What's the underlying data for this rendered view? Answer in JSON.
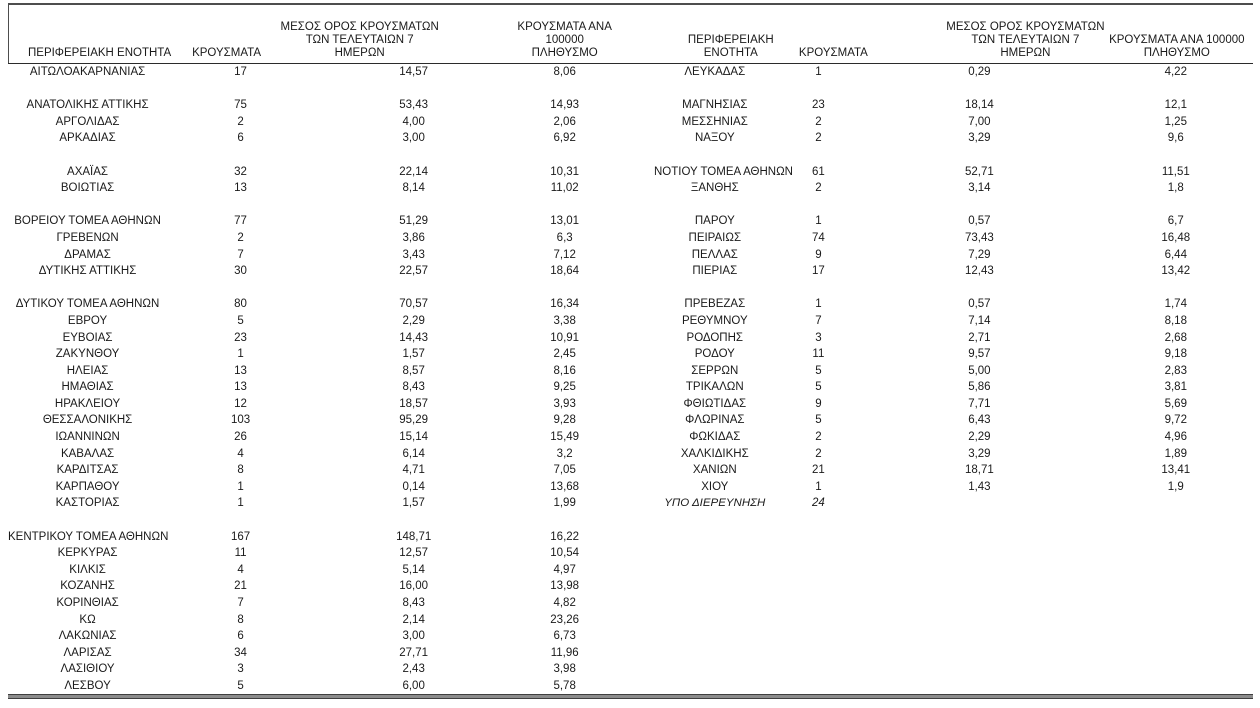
{
  "columns": {
    "region": "ΠΕΡΙΦΕΡΕΙΑΚΗ ΕΝΟΤΗΤΑ",
    "cases": "ΚΡΟΥΣΜΑΤΑ",
    "avg7": "ΜΕΣΟΣ ΟΡΟΣ ΚΡΟΥΣΜΑΤΩΝ\nΤΩΝ ΤΕΛΕΥΤΑΙΩΝ 7\nΗΜΕΡΩΝ",
    "per100k": "ΚΡΟΥΣΜΑΤΑ ΑΝΑ 100000\nΠΛΗΘΥΣΜΟ"
  },
  "colors": {
    "text": "#1a1a1a",
    "rule_dark": "#4d4d4d",
    "rule_bottom_fill": "#8c8c8c",
    "background": "#ffffff"
  },
  "tables": {
    "left": {
      "rows": [
        {
          "region": "ΑΙΤΩΛΟΑΚΑΡΝΑΝΙΑΣ",
          "cases": "17",
          "avg7": "14,57",
          "per100k": "8,06"
        },
        {},
        {
          "region": "ΑΝΑΤΟΛΙΚΗΣ ΑΤΤΙΚΗΣ",
          "cases": "75",
          "avg7": "53,43",
          "per100k": "14,93"
        },
        {
          "region": "ΑΡΓΟΛΙΔΑΣ",
          "cases": "2",
          "avg7": "4,00",
          "per100k": "2,06"
        },
        {
          "region": "ΑΡΚΑΔΙΑΣ",
          "cases": "6",
          "avg7": "3,00",
          "per100k": "6,92"
        },
        {},
        {
          "region": "ΑΧΑΪΑΣ",
          "cases": "32",
          "avg7": "22,14",
          "per100k": "10,31"
        },
        {
          "region": "ΒΟΙΩΤΙΑΣ",
          "cases": "13",
          "avg7": "8,14",
          "per100k": "11,02"
        },
        {},
        {
          "region": "ΒΟΡΕΙΟΥ ΤΟΜΕΑ ΑΘΗΝΩΝ",
          "cases": "77",
          "avg7": "51,29",
          "per100k": "13,01"
        },
        {
          "region": "ΓΡΕΒΕΝΩΝ",
          "cases": "2",
          "avg7": "3,86",
          "per100k": "6,3"
        },
        {
          "region": "ΔΡΑΜΑΣ",
          "cases": "7",
          "avg7": "3,43",
          "per100k": "7,12"
        },
        {
          "region": "ΔΥΤΙΚΗΣ ΑΤΤΙΚΗΣ",
          "cases": "30",
          "avg7": "22,57",
          "per100k": "18,64"
        },
        {},
        {
          "region": "ΔΥΤΙΚΟΥ ΤΟΜΕΑ ΑΘΗΝΩΝ",
          "cases": "80",
          "avg7": "70,57",
          "per100k": "16,34"
        },
        {
          "region": "ΕΒΡΟΥ",
          "cases": "5",
          "avg7": "2,29",
          "per100k": "3,38"
        },
        {
          "region": "ΕΥΒΟΙΑΣ",
          "cases": "23",
          "avg7": "14,43",
          "per100k": "10,91"
        },
        {
          "region": "ΖΑΚΥΝΘΟΥ",
          "cases": "1",
          "avg7": "1,57",
          "per100k": "2,45"
        },
        {
          "region": "ΗΛΕΙΑΣ",
          "cases": "13",
          "avg7": "8,57",
          "per100k": "8,16"
        },
        {
          "region": "ΗΜΑΘΙΑΣ",
          "cases": "13",
          "avg7": "8,43",
          "per100k": "9,25"
        },
        {
          "region": "ΗΡΑΚΛΕΙΟΥ",
          "cases": "12",
          "avg7": "18,57",
          "per100k": "3,93"
        },
        {
          "region": "ΘΕΣΣΑΛΟΝΙΚΗΣ",
          "cases": "103",
          "avg7": "95,29",
          "per100k": "9,28"
        },
        {
          "region": "ΙΩΑΝΝΙΝΩΝ",
          "cases": "26",
          "avg7": "15,14",
          "per100k": "15,49"
        },
        {
          "region": "ΚΑΒΑΛΑΣ",
          "cases": "4",
          "avg7": "6,14",
          "per100k": "3,2"
        },
        {
          "region": "ΚΑΡΔΙΤΣΑΣ",
          "cases": "8",
          "avg7": "4,71",
          "per100k": "7,05"
        },
        {
          "region": "ΚΑΡΠΑΘΟΥ",
          "cases": "1",
          "avg7": "0,14",
          "per100k": "13,68"
        },
        {
          "region": "ΚΑΣΤΟΡΙΑΣ",
          "cases": "1",
          "avg7": "1,57",
          "per100k": "1,99"
        },
        {},
        {
          "region": "ΚΕΝΤΡΙΚΟΥ ΤΟΜΕΑ ΑΘΗΝΩΝ",
          "cases": "167",
          "avg7": "148,71",
          "per100k": "16,22"
        },
        {
          "region": "ΚΕΡΚΥΡΑΣ",
          "cases": "11",
          "avg7": "12,57",
          "per100k": "10,54"
        },
        {
          "region": "ΚΙΛΚΙΣ",
          "cases": "4",
          "avg7": "5,14",
          "per100k": "4,97"
        },
        {
          "region": "ΚΟΖΑΝΗΣ",
          "cases": "21",
          "avg7": "16,00",
          "per100k": "13,98"
        },
        {
          "region": "ΚΟΡΙΝΘΙΑΣ",
          "cases": "7",
          "avg7": "8,43",
          "per100k": "4,82"
        },
        {
          "region": "ΚΩ",
          "cases": "8",
          "avg7": "2,14",
          "per100k": "23,26"
        },
        {
          "region": "ΛΑΚΩΝΙΑΣ",
          "cases": "6",
          "avg7": "3,00",
          "per100k": "6,73"
        },
        {
          "region": "ΛΑΡΙΣΑΣ",
          "cases": "34",
          "avg7": "27,71",
          "per100k": "11,96"
        },
        {
          "region": "ΛΑΣΙΘΙΟΥ",
          "cases": "3",
          "avg7": "2,43",
          "per100k": "3,98"
        },
        {
          "region": "ΛΕΣΒΟΥ",
          "cases": "5",
          "avg7": "6,00",
          "per100k": "5,78"
        }
      ]
    },
    "right": {
      "rows": [
        {
          "region": "ΛΕΥΚΑΔΑΣ",
          "cases": "1",
          "avg7": "0,29",
          "per100k": "4,22"
        },
        {},
        {
          "region": "ΜΑΓΝΗΣΙΑΣ",
          "cases": "23",
          "avg7": "18,14",
          "per100k": "12,1"
        },
        {
          "region": "ΜΕΣΣΗΝΙΑΣ",
          "cases": "2",
          "avg7": "7,00",
          "per100k": "1,25"
        },
        {
          "region": "ΝΑΞΟΥ",
          "cases": "2",
          "avg7": "3,29",
          "per100k": "9,6"
        },
        {},
        {
          "region": "ΝΟΤΙΟΥ ΤΟΜΕΑ ΑΘΗΝΩΝ",
          "cases": "61",
          "avg7": "52,71",
          "per100k": "11,51"
        },
        {
          "region": "ΞΑΝΘΗΣ",
          "cases": "2",
          "avg7": "3,14",
          "per100k": "1,8"
        },
        {},
        {
          "region": "ΠΑΡΟΥ",
          "cases": "1",
          "avg7": "0,57",
          "per100k": "6,7"
        },
        {
          "region": "ΠΕΙΡΑΙΩΣ",
          "cases": "74",
          "avg7": "73,43",
          "per100k": "16,48"
        },
        {
          "region": "ΠΕΛΛΑΣ",
          "cases": "9",
          "avg7": "7,29",
          "per100k": "6,44"
        },
        {
          "region": "ΠΙΕΡΙΑΣ",
          "cases": "17",
          "avg7": "12,43",
          "per100k": "13,42"
        },
        {},
        {
          "region": "ΠΡΕΒΕΖΑΣ",
          "cases": "1",
          "avg7": "0,57",
          "per100k": "1,74"
        },
        {
          "region": "ΡΕΘΥΜΝΟΥ",
          "cases": "7",
          "avg7": "7,14",
          "per100k": "8,18"
        },
        {
          "region": "ΡΟΔΟΠΗΣ",
          "cases": "3",
          "avg7": "2,71",
          "per100k": "2,68"
        },
        {
          "region": "ΡΟΔΟΥ",
          "cases": "11",
          "avg7": "9,57",
          "per100k": "9,18"
        },
        {
          "region": "ΣΕΡΡΩΝ",
          "cases": "5",
          "avg7": "5,00",
          "per100k": "2,83"
        },
        {
          "region": "ΤΡΙΚΑΛΩΝ",
          "cases": "5",
          "avg7": "5,86",
          "per100k": "3,81"
        },
        {
          "region": "ΦΘΙΩΤΙΔΑΣ",
          "cases": "9",
          "avg7": "7,71",
          "per100k": "5,69"
        },
        {
          "region": "ΦΛΩΡΙΝΑΣ",
          "cases": "5",
          "avg7": "6,43",
          "per100k": "9,72"
        },
        {
          "region": "ΦΩΚΙΔΑΣ",
          "cases": "2",
          "avg7": "2,29",
          "per100k": "4,96"
        },
        {
          "region": "ΧΑΛΚΙΔΙΚΗΣ",
          "cases": "2",
          "avg7": "3,29",
          "per100k": "1,89"
        },
        {
          "region": "ΧΑΝΙΩΝ",
          "cases": "21",
          "avg7": "18,71",
          "per100k": "13,41"
        },
        {
          "region": "ΧΙΟΥ",
          "cases": "1",
          "avg7": "1,43",
          "per100k": "1,9"
        },
        {
          "region": "ΥΠΟ ΔΙΕΡΕΥΝΗΣΗ",
          "cases": "24",
          "avg7": "",
          "per100k": "",
          "italic": true
        },
        {},
        {},
        {},
        {},
        {},
        {},
        {},
        {},
        {},
        {},
        {}
      ]
    }
  }
}
